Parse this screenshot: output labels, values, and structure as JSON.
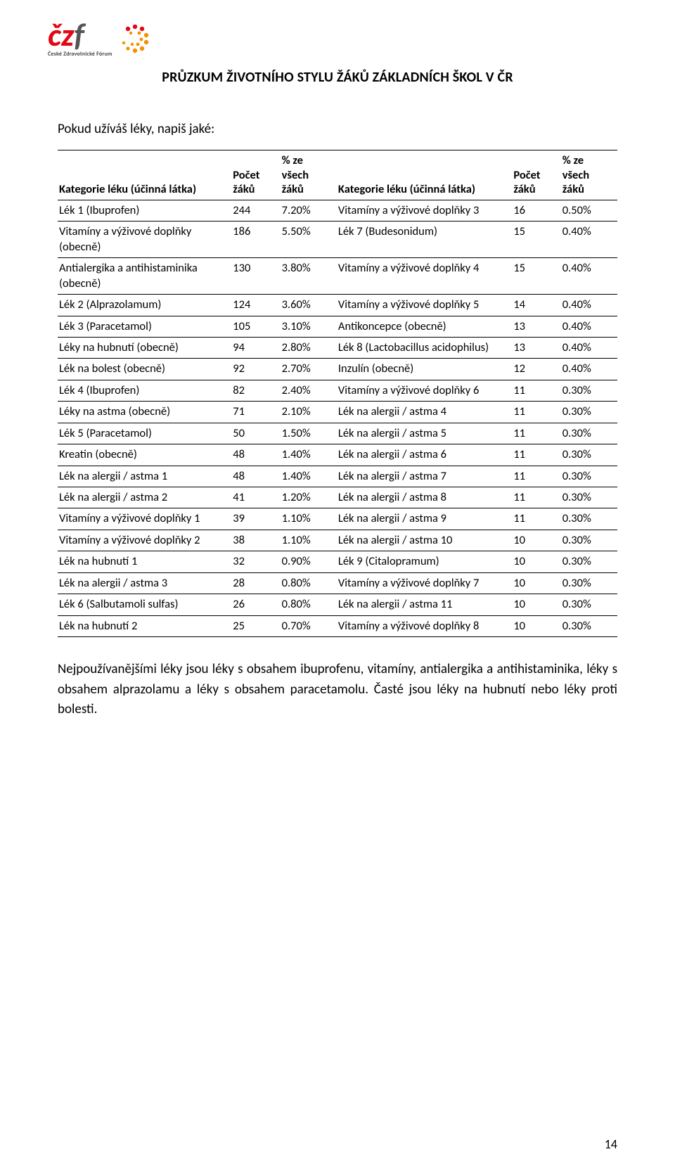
{
  "logo": {
    "subtitle": "České Zdravotnické Fórum"
  },
  "header": {
    "title": "PRŮZKUM ŽIVOTNÍHO STYLU ŽÁKŮ ZÁKLADNÍCH ŠKOL V ČR"
  },
  "section_title": "Pokud užíváš léky, napiš jaké:",
  "table": {
    "headers": {
      "left_label": "Kategorie léku (účinná látka)",
      "left_count": "Počet žáků",
      "left_pct": "% ze všech žáků",
      "right_label": "Kategorie léku (účinná látka)",
      "right_count": "Počet žáků",
      "right_pct": "% ze všech žáků"
    },
    "rows": [
      {
        "l_label": "Lék 1 (Ibuprofen)",
        "l_count": "244",
        "l_pct": "7.20%",
        "r_label": "Vitamíny a výživové doplňky 3",
        "r_count": "16",
        "r_pct": "0.50%"
      },
      {
        "l_label": "Vitamíny a výživové doplňky (obecně)",
        "l_count": "186",
        "l_pct": "5.50%",
        "r_label": "Lék 7 (Budesonidum)",
        "r_count": "15",
        "r_pct": "0.40%"
      },
      {
        "l_label": "Antialergika a antihistaminika (obecně)",
        "l_count": "130",
        "l_pct": "3.80%",
        "r_label": "Vitamíny a výživové doplňky 4",
        "r_count": "15",
        "r_pct": "0.40%"
      },
      {
        "l_label": "Lék 2 (Alprazolamum)",
        "l_count": "124",
        "l_pct": "3.60%",
        "r_label": "Vitamíny a výživové doplňky 5",
        "r_count": "14",
        "r_pct": "0.40%"
      },
      {
        "l_label": "Lék 3 (Paracetamol)",
        "l_count": "105",
        "l_pct": "3.10%",
        "r_label": "Antikoncepce (obecně)",
        "r_count": "13",
        "r_pct": "0.40%"
      },
      {
        "l_label": "Léky na hubnutí (obecně)",
        "l_count": "94",
        "l_pct": "2.80%",
        "r_label": "Lék 8 (Lactobacillus acidophilus)",
        "r_count": "13",
        "r_pct": "0.40%"
      },
      {
        "l_label": "Lék na bolest (obecně)",
        "l_count": "92",
        "l_pct": "2.70%",
        "r_label": "Inzulín (obecně)",
        "r_count": "12",
        "r_pct": "0.40%"
      },
      {
        "l_label": "Lék 4 (Ibuprofen)",
        "l_count": "82",
        "l_pct": "2.40%",
        "r_label": "Vitamíny a výživové doplňky 6",
        "r_count": "11",
        "r_pct": "0.30%"
      },
      {
        "l_label": "Léky na astma (obecně)",
        "l_count": "71",
        "l_pct": "2.10%",
        "r_label": "Lék na alergii / astma 4",
        "r_count": "11",
        "r_pct": "0.30%"
      },
      {
        "l_label": "Lék 5 (Paracetamol)",
        "l_count": "50",
        "l_pct": "1.50%",
        "r_label": "Lék na alergii / astma 5",
        "r_count": "11",
        "r_pct": "0.30%"
      },
      {
        "l_label": "Kreatin (obecně)",
        "l_count": "48",
        "l_pct": "1.40%",
        "r_label": "Lék na alergii / astma 6",
        "r_count": "11",
        "r_pct": "0.30%"
      },
      {
        "l_label": "Lék na alergii / astma 1",
        "l_count": "48",
        "l_pct": "1.40%",
        "r_label": "Lék na alergii / astma 7",
        "r_count": "11",
        "r_pct": "0.30%"
      },
      {
        "l_label": "Lék na alergii / astma 2",
        "l_count": "41",
        "l_pct": "1.20%",
        "r_label": "Lék na alergii / astma 8",
        "r_count": "11",
        "r_pct": "0.30%"
      },
      {
        "l_label": "Vitamíny a výživové doplňky 1",
        "l_count": "39",
        "l_pct": "1.10%",
        "r_label": "Lék na alergii / astma 9",
        "r_count": "11",
        "r_pct": "0.30%"
      },
      {
        "l_label": "Vitamíny a výživové doplňky 2",
        "l_count": "38",
        "l_pct": "1.10%",
        "r_label": "Lék na alergii / astma 10",
        "r_count": "10",
        "r_pct": "0.30%"
      },
      {
        "l_label": "Lék na hubnutí 1",
        "l_count": "32",
        "l_pct": "0.90%",
        "r_label": "Lék 9 (Citalopramum)",
        "r_count": "10",
        "r_pct": "0.30%"
      },
      {
        "l_label": "Lék na alergii / astma 3",
        "l_count": "28",
        "l_pct": "0.80%",
        "r_label": "Vitamíny a výživové doplňky 7",
        "r_count": "10",
        "r_pct": "0.30%"
      },
      {
        "l_label": "Lék 6 (Salbutamoli sulfas)",
        "l_count": "26",
        "l_pct": "0.80%",
        "r_label": "Lék na alergii / astma 11",
        "r_count": "10",
        "r_pct": "0.30%"
      },
      {
        "l_label": "Lék na hubnutí 2",
        "l_count": "25",
        "l_pct": "0.70%",
        "r_label": "Vitamíny a výživové doplňky 8",
        "r_count": "10",
        "r_pct": "0.30%"
      }
    ]
  },
  "summary": "Nejpoužívanějšími léky jsou léky s obsahem ibuprofenu, vitamíny, antialergika a antihistaminika, léky s obsahem alprazolamu a léky s obsahem paracetamolu. Časté jsou léky na hubnutí nebo léky proti bolesti.",
  "page_number": "14",
  "styles": {
    "body_font": "Calibri",
    "text_color": "#000000",
    "background_color": "#ffffff",
    "logo_red": "#e30613",
    "logo_orange": "#f39200",
    "logo_gray": "#444444",
    "table_border_color": "#000000",
    "header_fontsize": 20,
    "body_fontsize": 19,
    "table_fontsize": 16.5
  }
}
